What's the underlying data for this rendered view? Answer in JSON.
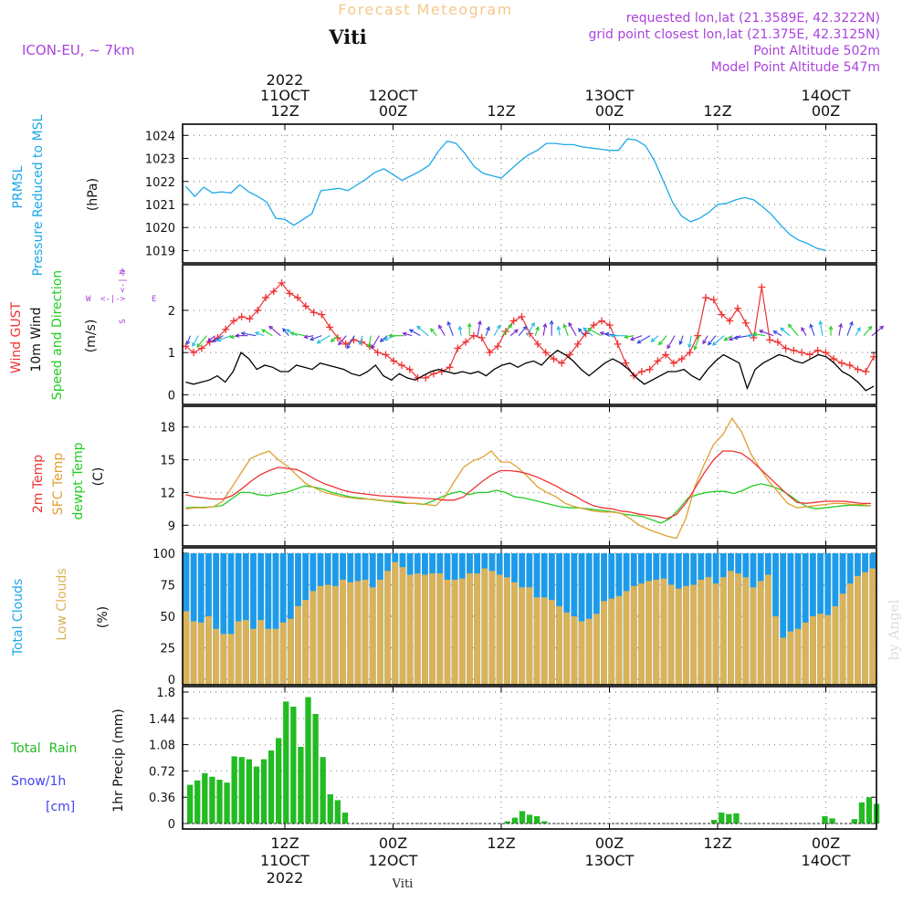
{
  "header": {
    "title": "Forecast Meteogram",
    "place": "Viti",
    "model": "ICON-EU, ~ 7km",
    "requested": "requested lon,lat (21.3589E, 42.3222N)",
    "gridpoint": "grid point closest lon,lat (21.375E, 42.3125N)",
    "point_alt": "Point Altitude 502m",
    "model_alt": "Model Point Altitude 547m",
    "footer_place": "Viti",
    "credit": "by Angel"
  },
  "colors": {
    "pressure": "#1ea8e8",
    "gust": "#ee3333",
    "wind": "#000000",
    "temp2m": "#ee3333",
    "sfc": "#e0a030",
    "dewpt": "#22cc22",
    "total_clouds": "#1e9be8",
    "low_clouds": "#d9b25a",
    "rain": "#22bb22",
    "label_purple": "#aa44dd",
    "label_blue": "#1ea8e8",
    "snow_blue": "#4444ee",
    "title_orange": "#f5c88a"
  },
  "time_axis": {
    "top_year": "2022",
    "ticks": [
      {
        "h": 0,
        "top": "11OCT",
        "bot": "12Z",
        "year": "2022"
      },
      {
        "h": 12,
        "top": "12OCT",
        "bot": "00Z"
      },
      {
        "h": 24,
        "top": "",
        "bot": "12Z"
      },
      {
        "h": 36,
        "top": "13OCT",
        "bot": "00Z"
      },
      {
        "h": 48,
        "top": "",
        "bot": "12Z"
      },
      {
        "h": 60,
        "top": "14OCT",
        "bot": "00Z"
      }
    ],
    "bottom_ticks": [
      {
        "h": 0,
        "a": "12Z",
        "b": "11OCT",
        "c": "2022"
      },
      {
        "h": 12,
        "a": "00Z",
        "b": "12OCT",
        "c": ""
      },
      {
        "h": 24,
        "a": "12Z",
        "b": "",
        "c": ""
      },
      {
        "h": 36,
        "a": "00Z",
        "b": "13OCT",
        "c": ""
      },
      {
        "h": 48,
        "a": "12Z",
        "b": "",
        "c": ""
      },
      {
        "h": 60,
        "a": "00Z",
        "b": "14OCT",
        "c": ""
      }
    ]
  },
  "panel_labels": {
    "pressure": {
      "l1": "PRMSL",
      "l2": "Pressure Reduced to MSL",
      "unit": "(hPa)"
    },
    "wind": {
      "l1": "Wind GUST",
      "l2": "10m Wind",
      "l3": "Speed and Direction",
      "unit": "(m/s)",
      "compass_w": "W",
      "compass_e": "E",
      "compass_n": "N",
      "compass_s": "S"
    },
    "temp": {
      "l1": "2m Temp",
      "l2": "SFC Temp",
      "l3": "dewpt Temp",
      "unit": "(C)"
    },
    "clouds": {
      "l1": "Total Clouds",
      "l2": "Low Clouds",
      "unit": "(%)"
    },
    "rain": {
      "l1": "Total  Rain",
      "l2": "Snow/1h",
      "l3": "[cm]",
      "unit": "1hr Precip (mm)"
    }
  },
  "chart_data": [
    {
      "type": "line",
      "name": "pressure",
      "ylim": [
        1018.7,
        1024.25
      ],
      "yticks": [
        1019,
        1020,
        1021,
        1022,
        1023,
        1024
      ],
      "x_start_h": -11,
      "x_step_h": 1,
      "values": [
        1021.8,
        1021.35,
        1021.75,
        1021.5,
        1021.55,
        1021.5,
        1021.85,
        1021.55,
        1021.35,
        1021.1,
        1020.4,
        1020.35,
        1020.1,
        1020.35,
        1020.6,
        1021.6,
        1021.65,
        1021.7,
        1021.6,
        1021.85,
        1022.1,
        1022.4,
        1022.55,
        1022.3,
        1022.05,
        1022.25,
        1022.45,
        1022.7,
        1023.3,
        1023.75,
        1023.65,
        1023.2,
        1022.65,
        1022.35,
        1022.25,
        1022.15,
        1022.5,
        1022.85,
        1023.15,
        1023.35,
        1023.65,
        1023.65,
        1023.6,
        1023.6,
        1023.5,
        1023.45,
        1023.4,
        1023.35,
        1023.35,
        1023.85,
        1023.8,
        1023.55,
        1022.9,
        1022.0,
        1021.1,
        1020.5,
        1020.25,
        1020.4,
        1020.65,
        1021.0,
        1021.05,
        1021.2,
        1021.3,
        1021.2,
        1020.9,
        1020.55,
        1020.1,
        1019.7,
        1019.45,
        1019.3,
        1019.1,
        1019.0
      ]
    },
    {
      "type": "line",
      "name": "wind",
      "ylim": [
        -0.1,
        2.95
      ],
      "yticks": [
        0,
        1,
        2
      ],
      "x_start_h": -11,
      "x_step_h": 1,
      "gust": [
        1.15,
        1.0,
        1.1,
        1.25,
        1.35,
        1.55,
        1.75,
        1.85,
        1.8,
        2.0,
        2.3,
        2.45,
        2.65,
        2.4,
        2.3,
        2.1,
        1.95,
        1.9,
        1.6,
        1.35,
        1.2,
        1.3,
        1.25,
        1.15,
        1.0,
        0.95,
        0.8,
        0.7,
        0.6,
        0.4,
        0.4,
        0.5,
        0.55,
        0.65,
        1.1,
        1.25,
        1.4,
        1.35,
        1.0,
        1.15,
        1.5,
        1.75,
        1.85,
        1.45,
        1.2,
        1.0,
        0.85,
        0.75,
        0.95,
        1.2,
        1.45,
        1.65,
        1.75,
        1.65,
        1.2,
        0.75,
        0.45,
        0.55,
        0.6,
        0.8,
        0.95,
        0.75,
        0.85,
        1.0,
        1.4,
        2.3,
        2.25,
        1.9,
        1.75,
        2.05,
        1.7,
        1.35,
        2.55,
        1.3,
        1.25,
        1.1,
        1.05,
        1.0,
        0.95,
        1.05,
        1.0,
        0.85,
        0.75,
        0.7,
        0.6,
        0.55,
        0.9
      ],
      "wind": [
        0.3,
        0.25,
        0.3,
        0.35,
        0.45,
        0.3,
        0.55,
        1.0,
        0.85,
        0.6,
        0.7,
        0.65,
        0.55,
        0.55,
        0.7,
        0.65,
        0.6,
        0.75,
        0.7,
        0.65,
        0.6,
        0.5,
        0.45,
        0.55,
        0.7,
        0.45,
        0.35,
        0.5,
        0.4,
        0.35,
        0.45,
        0.55,
        0.6,
        0.55,
        0.5,
        0.55,
        0.5,
        0.55,
        0.45,
        0.6,
        0.7,
        0.75,
        0.65,
        0.75,
        0.8,
        0.7,
        0.9,
        1.05,
        0.95,
        0.8,
        0.6,
        0.45,
        0.6,
        0.75,
        0.85,
        0.75,
        0.6,
        0.4,
        0.25,
        0.35,
        0.45,
        0.55,
        0.55,
        0.6,
        0.45,
        0.35,
        0.6,
        0.8,
        0.95,
        0.85,
        0.75,
        0.15,
        0.6,
        0.75,
        0.85,
        0.95,
        0.9,
        0.8,
        0.75,
        0.85,
        0.95,
        0.9,
        0.75,
        0.55,
        0.45,
        0.3,
        0.1,
        0.2
      ],
      "arrow_dirs": [
        200,
        210,
        220,
        230,
        240,
        250,
        260,
        270,
        280,
        290,
        300,
        310,
        320,
        300,
        280,
        260,
        250,
        240,
        230,
        220,
        210,
        200,
        190,
        210,
        230,
        250,
        270,
        285,
        300,
        310,
        320,
        330,
        340,
        350,
        0,
        10,
        20,
        30,
        40,
        50,
        40,
        30,
        20,
        10,
        0,
        350,
        340,
        330,
        320,
        310,
        300,
        290,
        280,
        270,
        260,
        250,
        240,
        230,
        220,
        210,
        200,
        190,
        200,
        210,
        220,
        230,
        240,
        250,
        260,
        270,
        280,
        290,
        300,
        310,
        320,
        330,
        340,
        350,
        0,
        10,
        20,
        30,
        40,
        50
      ]
    },
    {
      "type": "line",
      "name": "temperature",
      "ylim": [
        7.6,
        19.4
      ],
      "yticks": [
        9,
        12,
        15,
        18
      ],
      "x_start_h": -11,
      "x_step_h": 1,
      "t2m": [
        11.8,
        11.6,
        11.5,
        11.4,
        11.4,
        11.7,
        12.3,
        13.0,
        13.6,
        14.0,
        14.3,
        14.2,
        14.1,
        13.7,
        13.2,
        12.8,
        12.5,
        12.2,
        12.0,
        11.9,
        11.8,
        11.7,
        11.65,
        11.6,
        11.55,
        11.5,
        11.45,
        11.4,
        11.3,
        11.3,
        11.6,
        12.3,
        13.0,
        13.6,
        14.0,
        14.0,
        13.9,
        13.7,
        13.4,
        13.0,
        12.6,
        12.1,
        11.7,
        11.2,
        10.8,
        10.6,
        10.5,
        10.3,
        10.2,
        10.0,
        9.9,
        9.8,
        9.6,
        10.0,
        11.0,
        12.4,
        13.8,
        15.0,
        15.8,
        15.8,
        15.6,
        15.0,
        14.2,
        13.4,
        12.6,
        11.8,
        11.1,
        11.0,
        11.1,
        11.2,
        11.2,
        11.2,
        11.1,
        11.0,
        11.0
      ],
      "sfc": [
        10.5,
        10.6,
        10.6,
        10.7,
        11.2,
        12.5,
        13.8,
        15.1,
        15.5,
        15.8,
        15.0,
        14.4,
        13.6,
        12.8,
        12.4,
        12.0,
        11.8,
        11.6,
        11.5,
        11.4,
        11.4,
        11.3,
        11.2,
        11.2,
        11.0,
        11.0,
        10.9,
        10.8,
        11.6,
        13.0,
        14.3,
        14.9,
        15.2,
        15.8,
        14.8,
        14.8,
        14.2,
        13.4,
        12.5,
        12.0,
        11.6,
        11.0,
        10.7,
        10.5,
        10.3,
        10.2,
        10.2,
        10.1,
        9.6,
        9.0,
        8.6,
        8.3,
        8.0,
        7.8,
        9.6,
        12.6,
        14.6,
        16.4,
        17.3,
        18.8,
        17.6,
        15.6,
        14.2,
        13.0,
        12.0,
        11.0,
        10.6,
        10.7,
        10.8,
        10.9,
        11.0,
        11.0,
        10.9,
        10.9,
        10.8
      ],
      "dewpt": [
        10.6,
        10.65,
        10.65,
        10.7,
        10.8,
        11.4,
        12.0,
        12.0,
        11.8,
        11.7,
        11.9,
        12.0,
        12.3,
        12.6,
        12.5,
        12.3,
        12.0,
        11.8,
        11.6,
        11.5,
        11.4,
        11.3,
        11.2,
        11.1,
        11.0,
        11.0,
        10.9,
        11.2,
        11.6,
        11.9,
        12.1,
        11.8,
        12.0,
        12.0,
        12.2,
        12.0,
        11.6,
        11.5,
        11.3,
        11.1,
        10.9,
        10.7,
        10.6,
        10.6,
        10.5,
        10.4,
        10.3,
        10.2,
        10.0,
        9.9,
        9.8,
        9.5,
        9.2,
        9.6,
        10.5,
        11.5,
        11.8,
        12.0,
        12.1,
        12.1,
        11.9,
        12.2,
        12.6,
        12.8,
        12.6,
        12.3,
        11.8,
        11.2,
        10.7,
        10.5,
        10.6,
        10.7,
        10.8,
        10.85,
        10.8,
        10.8
      ]
    },
    {
      "type": "bar",
      "name": "clouds",
      "ylim": [
        0,
        100
      ],
      "yticks": [
        0,
        25,
        50,
        75,
        100
      ],
      "x_start_h": -11,
      "x_step_h": 1,
      "total": [
        100,
        100,
        100,
        100,
        100,
        100,
        100,
        100,
        100,
        100,
        100,
        100,
        100,
        100,
        100,
        100,
        100,
        100,
        100,
        100,
        100,
        100,
        100,
        100,
        100,
        100,
        100,
        100,
        100,
        100,
        100,
        100,
        100,
        100,
        100,
        100,
        100,
        100,
        100,
        100,
        100,
        100,
        100,
        100,
        100,
        100,
        100,
        100,
        100,
        100,
        100,
        100,
        100,
        100,
        100,
        100,
        100,
        100,
        100,
        100,
        100,
        100,
        100,
        100,
        100,
        100,
        100,
        100,
        100,
        100,
        100,
        100,
        100,
        100,
        100,
        100,
        100,
        100,
        100,
        100,
        100,
        100,
        100,
        100,
        100,
        100,
        100
      ],
      "low": [
        54,
        46,
        45,
        50,
        40,
        36,
        36,
        46,
        47,
        40,
        47,
        40,
        40,
        45,
        48,
        58,
        63,
        70,
        74,
        75,
        74,
        79,
        77,
        78,
        79,
        73,
        79,
        86,
        93,
        89,
        83,
        84,
        83,
        84,
        84,
        79,
        79,
        80,
        84,
        84,
        88,
        86,
        83,
        81,
        77,
        73,
        73,
        65,
        65,
        63,
        58,
        53,
        50,
        46,
        48,
        52,
        62,
        64,
        66,
        70,
        74,
        76,
        78,
        79,
        80,
        75,
        72,
        74,
        75,
        79,
        81,
        76,
        81,
        86,
        84,
        81,
        73,
        78,
        83,
        50,
        33,
        38,
        40,
        45,
        50,
        52,
        51,
        58,
        68,
        76,
        82,
        85,
        88
      ]
    },
    {
      "type": "bar",
      "name": "precip",
      "ylim": [
        0,
        1.8
      ],
      "yticks": [
        0,
        0.36,
        0.72,
        1.08,
        1.44,
        1.8
      ],
      "x_start_h": -11,
      "x_step_h": 1,
      "rain": [
        0.53,
        0.59,
        0.69,
        0.64,
        0.6,
        0.56,
        0.92,
        0.91,
        0.88,
        0.78,
        0.88,
        1.0,
        1.17,
        1.67,
        1.6,
        1.05,
        1.73,
        1.5,
        0.91,
        0.4,
        0.32,
        0.15,
        0,
        0,
        0,
        0,
        0,
        0,
        0,
        0,
        0,
        0,
        0,
        0,
        0,
        0,
        0,
        0,
        0,
        0,
        0,
        0,
        0,
        0.03,
        0.08,
        0.17,
        0.12,
        0.1,
        0.03,
        0,
        0,
        0,
        0,
        0,
        0,
        0,
        0,
        0,
        0,
        0,
        0,
        0,
        0,
        0,
        0,
        0,
        0,
        0,
        0,
        0,
        0,
        0.05,
        0.15,
        0.13,
        0.14,
        0,
        0,
        0,
        0,
        0,
        0,
        0,
        0,
        0,
        0,
        0,
        0.1,
        0.07,
        0,
        0,
        0.06,
        0.29,
        0.36,
        0.27
      ]
    }
  ]
}
